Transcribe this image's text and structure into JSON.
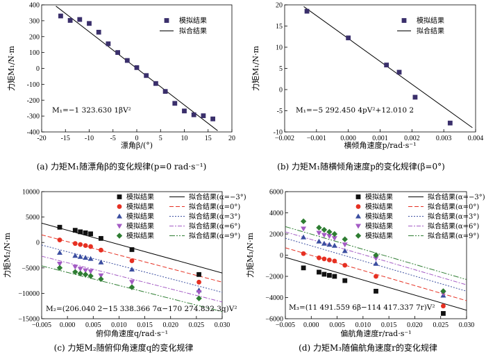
{
  "chart_data": [
    {
      "type": "scatter",
      "caption": "(a)  力矩M₁随漂角β的变化规律(p=0 rad·s⁻¹)",
      "xlabel": "漂角β/(°)",
      "ylabel": "力矩M₁/N·m",
      "equation": "M₁=−1 323.630 1βV²",
      "xlim": [
        -20,
        20
      ],
      "ylim": [
        -400,
        400
      ],
      "xticks": [
        -20,
        -15,
        -10,
        -5,
        0,
        5,
        10,
        15,
        20
      ],
      "yticks": [
        -400,
        -300,
        -200,
        -100,
        0,
        100,
        200,
        300,
        400
      ],
      "legend_position": "top-right",
      "series": [
        {
          "name": "模拟结果",
          "kind": "points",
          "marker": "square",
          "color": "#3a2f6b",
          "points": [
            [
              -16,
              330
            ],
            [
              -14,
              302
            ],
            [
              -12,
              308
            ],
            [
              -10,
              283
            ],
            [
              -8,
              228
            ],
            [
              -6,
              155
            ],
            [
              -4,
              100
            ],
            [
              -2,
              50
            ],
            [
              0,
              5
            ],
            [
              2,
              -45
            ],
            [
              4,
              -95
            ],
            [
              6,
              -145
            ],
            [
              8,
              -220
            ],
            [
              10,
              -268
            ],
            [
              12,
              -292
            ],
            [
              14,
              -298
            ],
            [
              16,
              -318
            ]
          ]
        },
        {
          "name": "拟合结果",
          "kind": "line",
          "color": "#000000",
          "dash": "",
          "points": [
            [
              -17,
              392
            ],
            [
              17,
              -392
            ]
          ]
        }
      ]
    },
    {
      "type": "scatter",
      "caption": "(b)  力矩M₁随横倾角速度p的变化规律(β=0°)",
      "xlabel": "横倾角速度p/rad·s⁻¹",
      "ylabel": "力矩M₁/N·m",
      "equation": "M₁=−5 292.450 4pV²+12.010 2",
      "xlim": [
        -0.002,
        0.004
      ],
      "ylim": [
        -10,
        20
      ],
      "xticks": [
        -0.002,
        -0.001,
        0.0,
        0.001,
        0.002,
        0.003,
        0.004
      ],
      "xtick_labels": [
        "−0.002",
        "−0.001",
        "0.000",
        "0.001",
        "0.002",
        "0.003",
        "0.004"
      ],
      "yticks": [
        -10,
        -5,
        0,
        5,
        10,
        15,
        20
      ],
      "legend_position": "top-right",
      "series": [
        {
          "name": "模拟结果",
          "kind": "points",
          "marker": "square",
          "color": "#3a2f6b",
          "points": [
            [
              -0.0013,
              18.5
            ],
            [
              0.0,
              12.2
            ],
            [
              0.0012,
              5.8
            ],
            [
              0.0016,
              4.1
            ],
            [
              0.0021,
              -1.8
            ],
            [
              0.0032,
              -7.9
            ]
          ]
        },
        {
          "name": "拟合结果",
          "kind": "line",
          "color": "#000000",
          "dash": "",
          "points": [
            [
              -0.0014,
              19.6
            ],
            [
              0.0039,
              -9.0
            ]
          ]
        }
      ]
    },
    {
      "type": "scatter",
      "caption": "(c)  力矩M₂随俯仰角速度q的变化规律",
      "xlabel": "俯仰角速度q/rad·s⁻¹",
      "ylabel": "力矩M₂/N·m",
      "equation": "M₂=(206.040 2−15 338.366 7α−170 274.832 3q)V²",
      "xlim": [
        -0.005,
        0.03
      ],
      "ylim": [
        -15000,
        10000
      ],
      "xticks": [
        -0.005,
        0.0,
        0.005,
        0.01,
        0.015,
        0.02,
        0.025,
        0.03
      ],
      "xtick_labels": [
        "−0.005",
        "0.000",
        "0.005",
        "0.010",
        "0.015",
        "0.020",
        "0.025",
        "0.030"
      ],
      "yticks": [
        -15000,
        -10000,
        -5000,
        0,
        5000,
        10000
      ],
      "ytick_labels": [
        "−15000",
        "−10000",
        "−5000",
        "0",
        "5000",
        "10000"
      ],
      "legend_position": "top",
      "series": [
        {
          "name": "模拟结果",
          "kind": "points",
          "marker": "square",
          "color": "#111111",
          "points": [
            [
              -0.0015,
              3000
            ],
            [
              0.0015,
              2400
            ],
            [
              0.0025,
              2100
            ],
            [
              0.0035,
              1900
            ],
            [
              0.0045,
              1700
            ],
            [
              0.0065,
              800
            ],
            [
              0.0125,
              -1400
            ],
            [
              0.0255,
              -6300
            ]
          ]
        },
        {
          "name": "模拟结果",
          "kind": "points",
          "marker": "circle",
          "color": "#e63022",
          "points": [
            [
              -0.0015,
              500
            ],
            [
              0.0015,
              -200
            ],
            [
              0.0025,
              -400
            ],
            [
              0.0035,
              -600
            ],
            [
              0.0045,
              -800
            ],
            [
              0.0065,
              -1500
            ],
            [
              0.0125,
              -3600
            ],
            [
              0.0255,
              -7800
            ]
          ]
        },
        {
          "name": "模拟结果",
          "kind": "points",
          "marker": "triangle",
          "color": "#3b4ea0",
          "points": [
            [
              -0.0015,
              -2000
            ],
            [
              0.0015,
              -2600
            ],
            [
              0.0025,
              -2800
            ],
            [
              0.0035,
              -3000
            ],
            [
              0.0045,
              -3200
            ],
            [
              0.0065,
              -3900
            ],
            [
              0.0125,
              -5300
            ],
            [
              0.0255,
              -9400
            ]
          ]
        },
        {
          "name": "模拟结果",
          "kind": "points",
          "marker": "triangle-down",
          "color": "#a35ac4",
          "points": [
            [
              -0.0015,
              -4200
            ],
            [
              0.0015,
              -4800
            ],
            [
              0.0025,
              -5200
            ],
            [
              0.0035,
              -5500
            ],
            [
              0.0045,
              -5700
            ],
            [
              0.0065,
              -6500
            ],
            [
              0.0125,
              -7800
            ],
            [
              0.0255,
              -9800
            ]
          ]
        },
        {
          "name": "模拟结果",
          "kind": "points",
          "marker": "diamond",
          "color": "#2e7d32",
          "points": [
            [
              -0.0015,
              -5000
            ],
            [
              0.0015,
              -5800
            ],
            [
              0.0025,
              -6100
            ],
            [
              0.0035,
              -6300
            ],
            [
              0.0045,
              -6600
            ],
            [
              0.0065,
              -7200
            ],
            [
              0.0125,
              -8800
            ],
            [
              0.0255,
              -11000
            ]
          ]
        },
        {
          "name": "拟合结果(α=−3°)",
          "kind": "line",
          "color": "#000000",
          "dash": "",
          "points": [
            [
              -0.005,
              3800
            ],
            [
              0.03,
              -6000
            ]
          ]
        },
        {
          "name": "拟合结果(α=0°)",
          "kind": "line",
          "color": "#e63022",
          "dash": "6,3",
          "points": [
            [
              -0.005,
              1500
            ],
            [
              0.03,
              -7800
            ]
          ]
        },
        {
          "name": "拟合结果(α=3°)",
          "kind": "line",
          "color": "#3b4ea0",
          "dash": "2,2",
          "points": [
            [
              -0.005,
              -500
            ],
            [
              0.03,
              -9800
            ]
          ]
        },
        {
          "name": "拟合结果(α=6°)",
          "kind": "line",
          "color": "#a35ac4",
          "dash": "6,2,2,2",
          "points": [
            [
              -0.005,
              -2700
            ],
            [
              0.03,
              -11700
            ]
          ]
        },
        {
          "name": "拟合结果(α=9°)",
          "kind": "line",
          "color": "#2e7d32",
          "dash": "8,2,2,2,2,2",
          "points": [
            [
              -0.005,
              -4600
            ],
            [
              0.03,
              -13600
            ]
          ]
        }
      ]
    },
    {
      "type": "scatter",
      "caption": "(d)  力矩M₃随偏航角速度r的变化规律",
      "xlabel": "偏航角速度r/rad·s⁻¹",
      "ylabel": "力矩M₃/N·m",
      "equation": "M₃=(11 491.559 6β−114 417.337 7r)V²",
      "xlim": [
        -0.005,
        0.03
      ],
      "ylim": [
        -6000,
        6000
      ],
      "xticks": [
        -0.005,
        0.0,
        0.005,
        0.01,
        0.015,
        0.02,
        0.025,
        0.03
      ],
      "xtick_labels": [
        "−0.005",
        "0.000",
        "0.005",
        "0.010",
        "0.015",
        "0.020",
        "0.025",
        "0.030"
      ],
      "yticks": [
        -6000,
        -4000,
        -2000,
        0,
        2000,
        4000,
        6000
      ],
      "ytick_labels": [
        "−6000",
        "−4000",
        "−2000",
        "0",
        "2000",
        "4000",
        "6000"
      ],
      "legend_position": "top",
      "series": [
        {
          "name": "模拟结果",
          "kind": "points",
          "marker": "square",
          "color": "#111111",
          "points": [
            [
              -0.0015,
              -1200
            ],
            [
              0.0015,
              -1600
            ],
            [
              0.0025,
              -1800
            ],
            [
              0.0035,
              -1900
            ],
            [
              0.0045,
              -2000
            ],
            [
              0.0065,
              -2400
            ],
            [
              0.0125,
              -3400
            ],
            [
              0.0255,
              -5500
            ]
          ]
        },
        {
          "name": "模拟结果",
          "kind": "points",
          "marker": "circle",
          "color": "#e63022",
          "points": [
            [
              -0.0015,
              150
            ],
            [
              0.0015,
              -250
            ],
            [
              0.0025,
              -350
            ],
            [
              0.0035,
              -450
            ],
            [
              0.0045,
              -550
            ],
            [
              0.0065,
              -950
            ],
            [
              0.0125,
              -2000
            ],
            [
              0.0255,
              -4800
            ]
          ]
        },
        {
          "name": "模拟结果",
          "kind": "points",
          "marker": "triangle",
          "color": "#3b4ea0",
          "points": [
            [
              -0.0015,
              1700
            ],
            [
              0.0015,
              1300
            ],
            [
              0.0025,
              1100
            ],
            [
              0.0035,
              1000
            ],
            [
              0.0045,
              900
            ],
            [
              0.0065,
              400
            ],
            [
              0.0125,
              -800
            ],
            [
              0.0255,
              -3800
            ]
          ]
        },
        {
          "name": "模拟结果",
          "kind": "points",
          "marker": "triangle-down",
          "color": "#a35ac4",
          "points": [
            [
              -0.0015,
              2500
            ],
            [
              0.0015,
              2100
            ],
            [
              0.0025,
              1900
            ],
            [
              0.0035,
              1800
            ],
            [
              0.0045,
              1600
            ],
            [
              0.0065,
              1000
            ],
            [
              0.0125,
              -300
            ],
            [
              0.0255,
              -3600
            ]
          ]
        },
        {
          "name": "模拟结果",
          "kind": "points",
          "marker": "diamond",
          "color": "#2e7d32",
          "points": [
            [
              -0.0015,
              3200
            ],
            [
              0.0015,
              2600
            ],
            [
              0.0025,
              2400
            ],
            [
              0.0035,
              2200
            ],
            [
              0.0045,
              2000
            ],
            [
              0.0065,
              1500
            ],
            [
              0.0125,
              0
            ],
            [
              0.0255,
              -3400
            ]
          ]
        },
        {
          "name": "拟合结果(α=−3°)",
          "kind": "line",
          "color": "#000000",
          "dash": "",
          "points": [
            [
              -0.005,
              -200
            ],
            [
              0.03,
              -5200
            ]
          ]
        },
        {
          "name": "拟合结果(α=0°)",
          "kind": "line",
          "color": "#e63022",
          "dash": "6,3",
          "points": [
            [
              -0.005,
              700
            ],
            [
              0.03,
              -4300
            ]
          ]
        },
        {
          "name": "拟合结果(α=3°)",
          "kind": "line",
          "color": "#3b4ea0",
          "dash": "2,2",
          "points": [
            [
              -0.005,
              1600
            ],
            [
              0.03,
              -3400
            ]
          ]
        },
        {
          "name": "拟合结果(α=6°)",
          "kind": "line",
          "color": "#a35ac4",
          "dash": "6,2,2,2",
          "points": [
            [
              -0.005,
              2200
            ],
            [
              0.03,
              -2800
            ]
          ]
        },
        {
          "name": "拟合结果(α=9°)",
          "kind": "line",
          "color": "#2e7d32",
          "dash": "8,2,2,2,2,2",
          "points": [
            [
              -0.005,
              2700
            ],
            [
              0.03,
              -2300
            ]
          ]
        }
      ]
    }
  ]
}
